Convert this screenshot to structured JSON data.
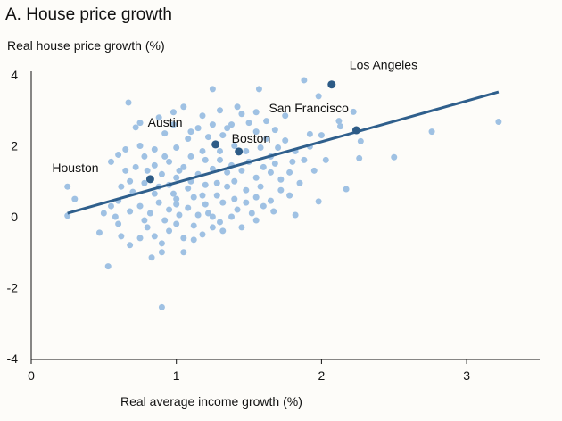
{
  "chart_data": {
    "type": "scatter",
    "title": "A. House price growth",
    "xlabel": "Real average income growth (%)",
    "ylabel": "Real house price growth (%)",
    "xlim": [
      0,
      3.5
    ],
    "ylim": [
      -4,
      4
    ],
    "xticks": [
      0,
      1,
      2,
      3
    ],
    "yticks": [
      4,
      2,
      0,
      -2,
      -4
    ],
    "grid": false,
    "colors": {
      "points": "#9fc1e3",
      "highlight": "#2d5b86",
      "trend": "#2f5f8c"
    },
    "trend_line": {
      "x": [
        0.25,
        3.22
      ],
      "y": [
        0.1,
        3.52
      ]
    },
    "highlighted": [
      {
        "name": "Houston",
        "x": 0.82,
        "y": 1.06
      },
      {
        "name": "Austin",
        "x": 1.27,
        "y": 2.04
      },
      {
        "name": "Boston",
        "x": 1.43,
        "y": 1.84
      },
      {
        "name": "San Francisco",
        "x": 2.24,
        "y": 2.44
      },
      {
        "name": "Los Angeles",
        "x": 2.07,
        "y": 3.73
      }
    ],
    "points": [
      [
        0.25,
        0.85
      ],
      [
        0.3,
        0.5
      ],
      [
        0.25,
        0.03
      ],
      [
        0.47,
        -0.45
      ],
      [
        0.53,
        -1.4
      ],
      [
        0.9,
        -2.55
      ],
      [
        0.83,
        -1.15
      ],
      [
        1.05,
        -1.0
      ],
      [
        3.22,
        2.68
      ],
      [
        2.76,
        2.4
      ],
      [
        2.5,
        1.68
      ],
      [
        2.26,
        1.65
      ],
      [
        2.17,
        0.78
      ],
      [
        1.98,
        0.43
      ],
      [
        2.27,
        2.13
      ],
      [
        1.88,
        3.85
      ],
      [
        0.67,
        3.22
      ],
      [
        1.25,
        3.6
      ],
      [
        1.57,
        3.6
      ],
      [
        1.98,
        3.4
      ],
      [
        2.22,
        2.96
      ],
      [
        1.75,
        2.85
      ],
      [
        1.92,
        2.33
      ],
      [
        2.0,
        2.3
      ],
      [
        2.13,
        2.55
      ],
      [
        2.12,
        2.7
      ],
      [
        1.92,
        1.98
      ],
      [
        2.03,
        1.6
      ],
      [
        1.8,
        1.55
      ],
      [
        1.72,
        1.05
      ],
      [
        1.85,
        0.95
      ],
      [
        1.78,
        0.6
      ],
      [
        1.67,
        0.15
      ],
      [
        1.82,
        0.05
      ],
      [
        0.55,
        1.55
      ],
      [
        0.6,
        1.75
      ],
      [
        0.65,
        1.3
      ],
      [
        0.72,
        2.52
      ],
      [
        0.75,
        2.65
      ],
      [
        0.6,
        0.45
      ],
      [
        0.58,
        0.0
      ],
      [
        0.6,
        -0.2
      ],
      [
        0.62,
        -0.55
      ],
      [
        0.68,
        -0.8
      ],
      [
        0.75,
        -0.6
      ],
      [
        0.8,
        -0.3
      ],
      [
        0.85,
        -0.55
      ],
      [
        0.9,
        -0.75
      ],
      [
        0.95,
        -0.4
      ],
      [
        1.0,
        -0.2
      ],
      [
        1.05,
        -0.6
      ],
      [
        1.12,
        -0.65
      ],
      [
        1.18,
        -0.5
      ],
      [
        1.25,
        -0.3
      ],
      [
        1.3,
        -0.15
      ],
      [
        1.38,
        0.0
      ],
      [
        1.45,
        -0.3
      ],
      [
        1.52,
        0.1
      ],
      [
        1.6,
        0.3
      ],
      [
        1.55,
        0.55
      ],
      [
        1.48,
        0.75
      ],
      [
        1.4,
        0.5
      ],
      [
        1.35,
        0.85
      ],
      [
        1.28,
        0.6
      ],
      [
        1.2,
        0.35
      ],
      [
        1.15,
        0.05
      ],
      [
        1.08,
        0.25
      ],
      [
        1.0,
        0.5
      ],
      [
        0.95,
        0.2
      ],
      [
        0.88,
        0.4
      ],
      [
        0.82,
        0.1
      ],
      [
        0.75,
        0.3
      ],
      [
        0.7,
        0.7
      ],
      [
        0.68,
        1.0
      ],
      [
        0.72,
        1.4
      ],
      [
        0.78,
        1.7
      ],
      [
        0.85,
        1.45
      ],
      [
        0.9,
        1.2
      ],
      [
        0.95,
        0.9
      ],
      [
        1.0,
        1.1
      ],
      [
        1.05,
        1.4
      ],
      [
        1.1,
        1.7
      ],
      [
        1.15,
        1.2
      ],
      [
        1.2,
        0.9
      ],
      [
        1.25,
        1.35
      ],
      [
        1.3,
        1.6
      ],
      [
        1.35,
        1.25
      ],
      [
        1.4,
        1.0
      ],
      [
        1.45,
        1.3
      ],
      [
        1.5,
        1.55
      ],
      [
        1.55,
        1.1
      ],
      [
        1.6,
        1.4
      ],
      [
        1.65,
        1.7
      ],
      [
        1.7,
        1.95
      ],
      [
        1.62,
        2.2
      ],
      [
        1.55,
        2.4
      ],
      [
        1.5,
        2.65
      ],
      [
        1.45,
        2.9
      ],
      [
        1.38,
        2.6
      ],
      [
        1.32,
        2.3
      ],
      [
        1.22,
        2.25
      ],
      [
        1.15,
        2.5
      ],
      [
        1.08,
        2.2
      ],
      [
        1.0,
        1.95
      ],
      [
        0.92,
        2.35
      ],
      [
        0.88,
        2.8
      ],
      [
        0.98,
        2.95
      ],
      [
        1.05,
        3.1
      ],
      [
        1.18,
        2.85
      ],
      [
        1.3,
        3.0
      ],
      [
        1.42,
        3.1
      ],
      [
        1.55,
        2.95
      ],
      [
        1.62,
        2.7
      ],
      [
        1.68,
        2.45
      ],
      [
        1.75,
        2.15
      ],
      [
        1.82,
        1.85
      ],
      [
        1.88,
        1.6
      ],
      [
        1.95,
        1.3
      ],
      [
        1.65,
        1.25
      ],
      [
        1.58,
        0.85
      ],
      [
        1.48,
        0.4
      ],
      [
        1.42,
        0.2
      ],
      [
        1.32,
        0.4
      ],
      [
        1.22,
        0.1
      ],
      [
        1.12,
        -0.25
      ],
      [
        1.02,
        0.05
      ],
      [
        0.92,
        -0.1
      ],
      [
        0.85,
        0.65
      ],
      [
        0.78,
        0.95
      ],
      [
        0.8,
        1.3
      ],
      [
        0.88,
        0.85
      ],
      [
        0.98,
        0.65
      ],
      [
        1.08,
        0.8
      ],
      [
        1.18,
        0.6
      ],
      [
        1.28,
        0.95
      ],
      [
        1.38,
        1.45
      ],
      [
        1.48,
        1.85
      ],
      [
        1.4,
        2.0
      ],
      [
        1.3,
        1.85
      ],
      [
        1.2,
        1.6
      ],
      [
        1.1,
        1.0
      ],
      [
        1.02,
        1.3
      ],
      [
        0.95,
        1.55
      ],
      [
        0.85,
        1.9
      ],
      [
        0.75,
        2.0
      ],
      [
        0.65,
        1.9
      ],
      [
        0.62,
        0.85
      ],
      [
        0.55,
        0.3
      ],
      [
        0.5,
        0.1
      ],
      [
        0.68,
        0.15
      ],
      [
        0.9,
        -1.0
      ],
      [
        0.78,
        -0.1
      ],
      [
        1.32,
        -0.4
      ],
      [
        1.25,
        0.0
      ],
      [
        1.55,
        -0.1
      ],
      [
        1.65,
        0.45
      ],
      [
        1.72,
        0.75
      ],
      [
        1.78,
        1.25
      ],
      [
        1.68,
        1.5
      ],
      [
        1.58,
        1.95
      ],
      [
        1.35,
        2.5
      ],
      [
        1.25,
        2.6
      ],
      [
        1.1,
        2.4
      ],
      [
        0.98,
        2.6
      ],
      [
        0.92,
        1.7
      ],
      [
        1.0,
        0.35
      ],
      [
        1.12,
        0.55
      ],
      [
        1.18,
        1.85
      ]
    ]
  }
}
